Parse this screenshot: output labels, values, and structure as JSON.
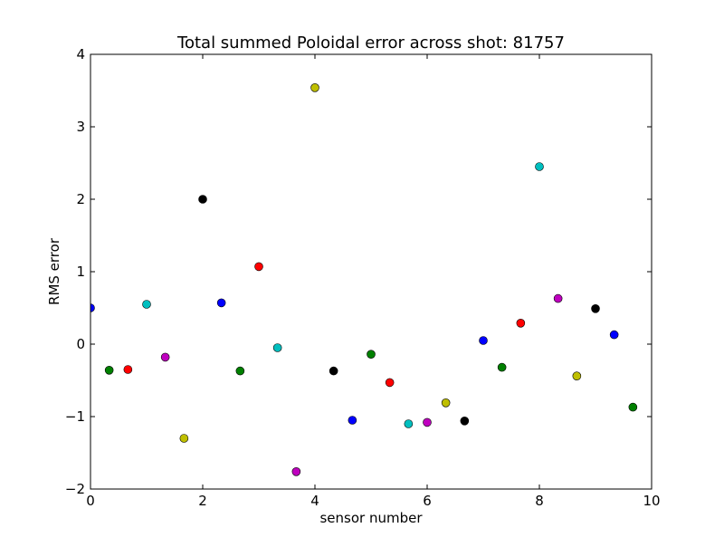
{
  "chart_data": {
    "type": "scatter",
    "title": "Total summed Poloidal error across shot: 81757",
    "xlabel": "sensor number",
    "ylabel": "RMS error",
    "xlim": [
      0,
      10
    ],
    "ylim": [
      -2,
      4
    ],
    "x_ticks": [
      0,
      2,
      4,
      6,
      8,
      10
    ],
    "y_ticks": [
      -2,
      -1,
      0,
      1,
      2,
      3,
      4
    ],
    "x_tick_labels": [
      "0",
      "2",
      "4",
      "6",
      "8",
      "10"
    ],
    "y_tick_labels": [
      "−2",
      "−1",
      "0",
      "1",
      "2",
      "3",
      "4"
    ],
    "grid": false,
    "legend": false,
    "colors": {
      "b": "#0000ff",
      "g": "#008000",
      "r": "#ff0000",
      "c": "#00bfbf",
      "m": "#bf00bf",
      "y": "#bfbf00",
      "k": "#000000"
    },
    "points": [
      {
        "x": 0.0,
        "y": 0.5,
        "color": "b"
      },
      {
        "x": 0.333,
        "y": -0.36,
        "color": "g"
      },
      {
        "x": 0.667,
        "y": -0.35,
        "color": "r"
      },
      {
        "x": 1.0,
        "y": 0.55,
        "color": "c"
      },
      {
        "x": 1.333,
        "y": -0.18,
        "color": "m"
      },
      {
        "x": 1.667,
        "y": -1.3,
        "color": "y"
      },
      {
        "x": 2.0,
        "y": 2.0,
        "color": "k"
      },
      {
        "x": 2.333,
        "y": 0.57,
        "color": "b"
      },
      {
        "x": 2.667,
        "y": -0.37,
        "color": "g"
      },
      {
        "x": 3.0,
        "y": 1.07,
        "color": "r"
      },
      {
        "x": 3.333,
        "y": -0.05,
        "color": "c"
      },
      {
        "x": 3.667,
        "y": -1.76,
        "color": "m"
      },
      {
        "x": 4.0,
        "y": 3.54,
        "color": "y"
      },
      {
        "x": 4.333,
        "y": -0.37,
        "color": "k"
      },
      {
        "x": 4.667,
        "y": -1.05,
        "color": "b"
      },
      {
        "x": 5.0,
        "y": -0.14,
        "color": "g"
      },
      {
        "x": 5.333,
        "y": -0.53,
        "color": "r"
      },
      {
        "x": 5.667,
        "y": -1.1,
        "color": "c"
      },
      {
        "x": 6.0,
        "y": -1.08,
        "color": "m"
      },
      {
        "x": 6.333,
        "y": -0.81,
        "color": "y"
      },
      {
        "x": 6.667,
        "y": -1.06,
        "color": "k"
      },
      {
        "x": 7.0,
        "y": 0.05,
        "color": "b"
      },
      {
        "x": 7.333,
        "y": -0.32,
        "color": "g"
      },
      {
        "x": 7.667,
        "y": 0.29,
        "color": "r"
      },
      {
        "x": 8.0,
        "y": 2.45,
        "color": "c"
      },
      {
        "x": 8.333,
        "y": 0.63,
        "color": "m"
      },
      {
        "x": 8.667,
        "y": -0.44,
        "color": "y"
      },
      {
        "x": 9.0,
        "y": 0.49,
        "color": "k"
      },
      {
        "x": 9.333,
        "y": 0.13,
        "color": "b"
      },
      {
        "x": 9.667,
        "y": -0.87,
        "color": "g"
      }
    ]
  }
}
